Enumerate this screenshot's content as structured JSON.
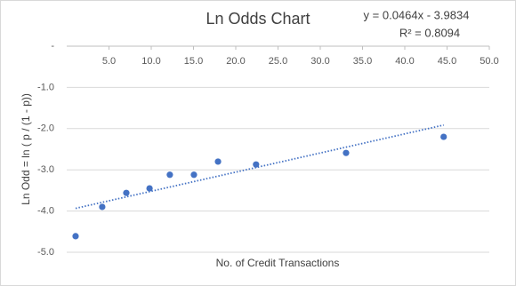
{
  "chart_data": {
    "type": "scatter",
    "title": "Ln Odds Chart",
    "x_label": "No. of Credit Transactions",
    "y_label": "Ln Odd = ln ( p / (1 - p))",
    "series": [
      {
        "name": "Ln Odd",
        "color": "#4472c4",
        "x": [
          1.05,
          4.2,
          7.05,
          9.8,
          12.2,
          15.05,
          17.9,
          22.4,
          33.05,
          44.6
        ],
        "values": [
          -4.61,
          -3.9,
          -3.56,
          -3.45,
          -3.12,
          -3.12,
          -2.8,
          -2.87,
          -2.59,
          -2.2
        ]
      }
    ],
    "trendline": {
      "slope": 0.0464,
      "intercept": -3.9834,
      "r2": 0.8094,
      "label": "y = 0.0464x - 3.9834",
      "r2_label": "R² = 0.8094",
      "color": "#4472c4"
    },
    "xlim": [
      0,
      50
    ],
    "ylim": [
      -5,
      0
    ],
    "xticks": [
      {
        "value": 5,
        "label": "5.0"
      },
      {
        "value": 10,
        "label": "10.0"
      },
      {
        "value": 15,
        "label": "15.0"
      },
      {
        "value": 20,
        "label": "20.0"
      },
      {
        "value": 25,
        "label": "25.0"
      },
      {
        "value": 30,
        "label": "30.0"
      },
      {
        "value": 35,
        "label": "35.0"
      },
      {
        "value": 40,
        "label": "40.0"
      },
      {
        "value": 45,
        "label": "45.0"
      },
      {
        "value": 50,
        "label": "50.0"
      }
    ],
    "yticks": [
      {
        "value": 0,
        "label": "-"
      },
      {
        "value": -1,
        "label": "-1.0"
      },
      {
        "value": -2,
        "label": "-2.0"
      },
      {
        "value": -3,
        "label": "-3.0"
      },
      {
        "value": -4,
        "label": "-4.0"
      },
      {
        "value": -5,
        "label": "-5.0"
      }
    ],
    "grid": true
  }
}
